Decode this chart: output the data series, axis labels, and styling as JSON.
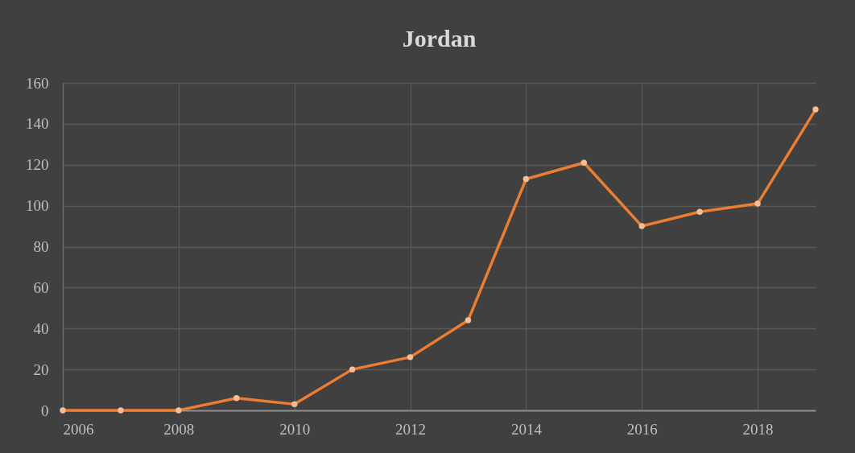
{
  "chart_data": {
    "type": "line",
    "title": "Jordan",
    "x": [
      2006,
      2007,
      2008,
      2009,
      2010,
      2011,
      2012,
      2013,
      2014,
      2015,
      2016,
      2017,
      2018,
      2019
    ],
    "series": [
      {
        "color": "#ed7d31",
        "values": [
          0,
          0,
          0,
          6,
          3,
          20,
          26,
          44,
          113,
          121,
          90,
          97,
          101,
          147
        ]
      }
    ],
    "xlim": [
      2006,
      2019
    ],
    "xticks": [
      2006,
      2008,
      2010,
      2012,
      2014,
      2016,
      2018
    ],
    "ylim": [
      0,
      160
    ],
    "yticks": [
      0,
      20,
      40,
      60,
      80,
      100,
      120,
      140,
      160
    ],
    "grid": true,
    "marker": "circle",
    "line_style": "solid"
  }
}
